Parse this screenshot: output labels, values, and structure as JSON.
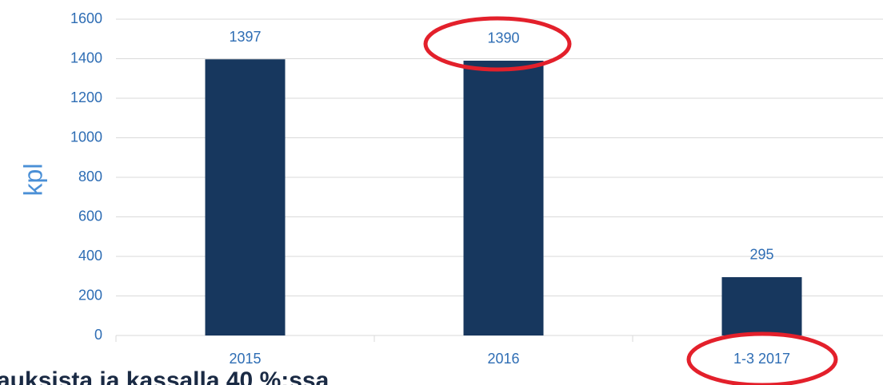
{
  "chart_data": {
    "type": "bar",
    "ylabel": "kpl",
    "categories": [
      "2015",
      "2016",
      "1-3 2017"
    ],
    "values": [
      1397,
      1390,
      295
    ],
    "color": "#17375e",
    "ylim": [
      0,
      1600
    ],
    "yticks": [
      0,
      200,
      400,
      600,
      800,
      1000,
      1200,
      1400,
      1600
    ],
    "grid": true,
    "annotations": [
      "auksista ja kassalla 40 %:ssa"
    ]
  }
}
